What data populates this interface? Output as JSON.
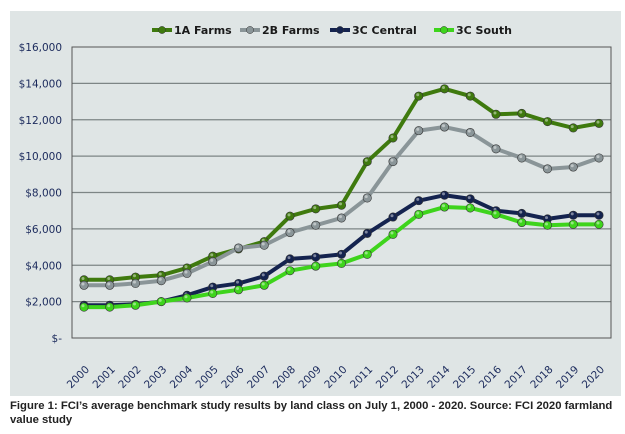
{
  "chart_data": {
    "type": "line",
    "title": "",
    "xlabel": "",
    "ylabel": "",
    "x": [
      "2000",
      "2001",
      "2002",
      "2003",
      "2004",
      "2005",
      "2006",
      "2007",
      "2008",
      "2009",
      "2010",
      "2011",
      "2012",
      "2013",
      "2014",
      "2015",
      "2016",
      "2017",
      "2018",
      "2019",
      "2020"
    ],
    "ylim": [
      0,
      16000
    ],
    "yticks": [
      0,
      2000,
      4000,
      6000,
      8000,
      10000,
      12000,
      14000,
      16000
    ],
    "ytick_labels": [
      "$-",
      "$2,000",
      "$4,000",
      "$6,000",
      "$8,000",
      "$10,000",
      "$12,000",
      "$14,000",
      "$16,000"
    ],
    "grid": true,
    "legend_position": "top",
    "series": [
      {
        "name": "1A Farms",
        "color": "#3f7a0e",
        "values": [
          3200,
          3200,
          3350,
          3450,
          3850,
          4500,
          4900,
          5300,
          6700,
          7100,
          7300,
          9700,
          11000,
          13300,
          13700,
          13300,
          12300,
          12350,
          11900,
          11550,
          11800
        ]
      },
      {
        "name": "2B Farms",
        "color": "#8a9598",
        "values": [
          2900,
          2900,
          3000,
          3150,
          3550,
          4200,
          4950,
          5100,
          5800,
          6200,
          6600,
          7700,
          9700,
          11400,
          11600,
          11300,
          10400,
          9900,
          9300,
          9400,
          9900
        ]
      },
      {
        "name": "3C Central",
        "color": "#14234f",
        "values": [
          1800,
          1800,
          1850,
          2000,
          2350,
          2800,
          3000,
          3400,
          4350,
          4450,
          4600,
          5750,
          6650,
          7550,
          7850,
          7650,
          7000,
          6850,
          6550,
          6750,
          6750
        ]
      },
      {
        "name": "3C South",
        "color": "#3ed41c",
        "values": [
          1700,
          1700,
          1800,
          2000,
          2200,
          2450,
          2650,
          2900,
          3700,
          3950,
          4100,
          4600,
          5700,
          6800,
          7200,
          7150,
          6800,
          6350,
          6200,
          6250,
          6250
        ]
      }
    ]
  },
  "caption": "Figure 1: FCI’s average benchmark study results by land class on July 1, 2000 - 2020. Source: FCI 2020 farmland value study"
}
